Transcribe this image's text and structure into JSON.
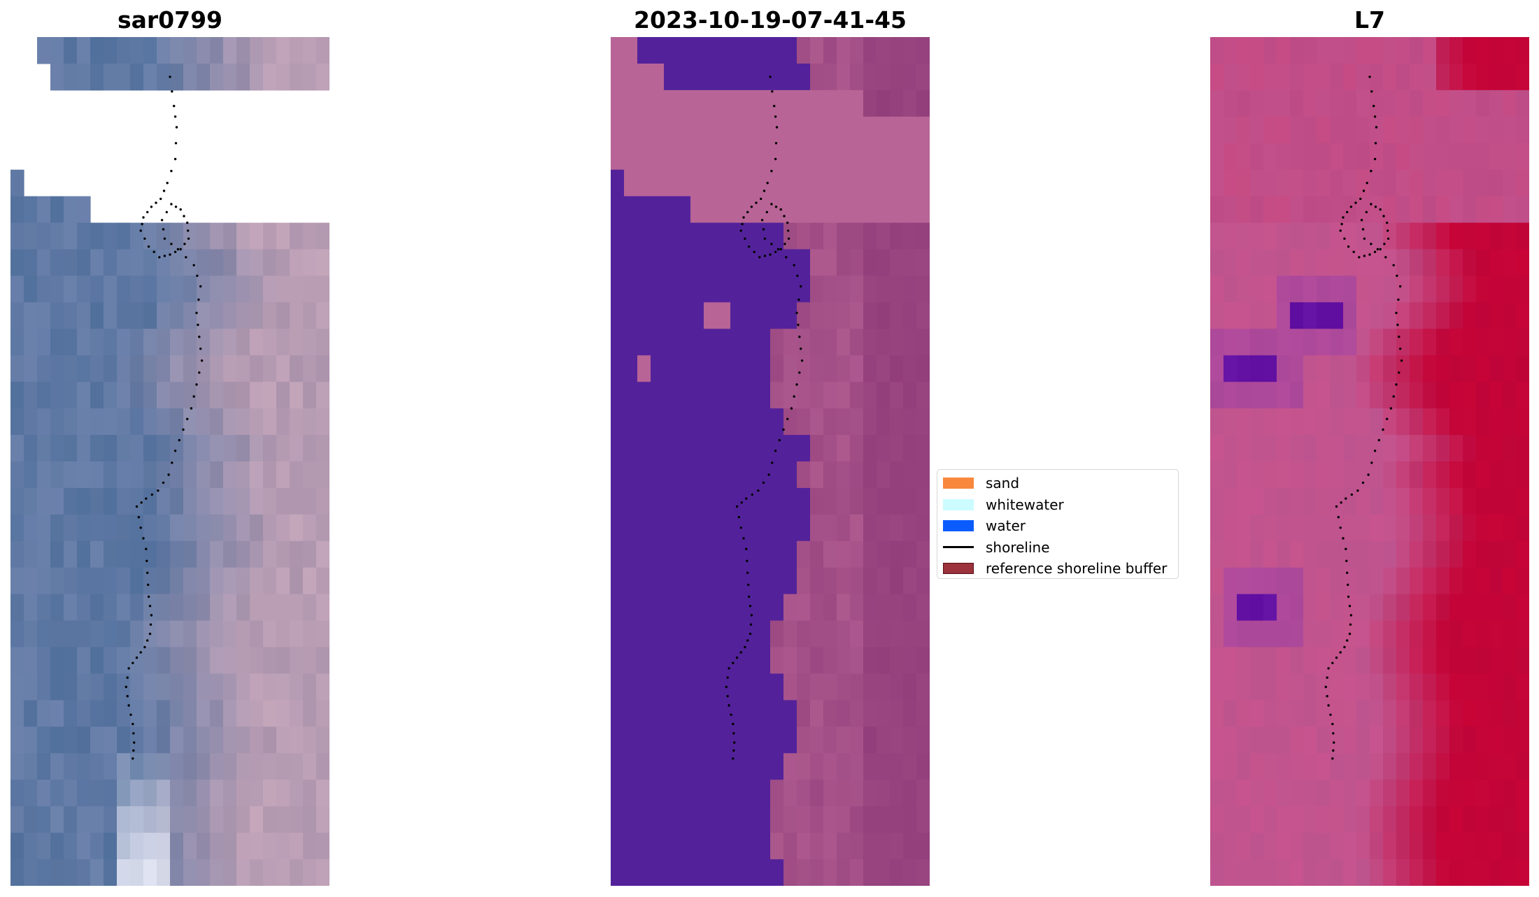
{
  "panels": [
    {
      "title": "sar0799",
      "kind": "rgb",
      "base": "#5f79a4",
      "warm": "#c7a3b6",
      "nodata": "#ffffff",
      "bright": "#eef0fb"
    },
    {
      "title": "2023-10-19-07-41-45",
      "kind": "classified",
      "water": "#53229a",
      "land": "#b86496",
      "buffer": "#8d3a78"
    },
    {
      "title": "L7",
      "kind": "index",
      "low": "#c2548e",
      "high": "#c30033",
      "dark": "#4a00a8"
    }
  ],
  "legend": {
    "items": [
      {
        "label": "sand",
        "color": "#f9883d",
        "style": "patch"
      },
      {
        "label": "whitewater",
        "color": "#ccfcff",
        "style": "patch"
      },
      {
        "label": "water",
        "color": "#0b5cff",
        "style": "patch"
      },
      {
        "label": "shoreline",
        "color": "#000000",
        "style": "line"
      },
      {
        "label": "reference shoreline buffer",
        "color": "#9c323c",
        "style": "buffer"
      }
    ]
  },
  "shoreline": {
    "color": "#000000",
    "points": [
      [
        12.0,
        1.5
      ],
      [
        12.3,
        2.6
      ],
      [
        12.5,
        3.4
      ],
      [
        12.4,
        4.6
      ],
      [
        11.8,
        5.5
      ],
      [
        11.3,
        6.1
      ],
      [
        10.6,
        6.4
      ],
      [
        10.0,
        6.8
      ],
      [
        9.8,
        7.3
      ],
      [
        10.4,
        7.9
      ],
      [
        11.2,
        8.3
      ],
      [
        12.0,
        8.2
      ],
      [
        12.8,
        8.0
      ],
      [
        13.4,
        7.6
      ],
      [
        13.3,
        7.0
      ],
      [
        12.8,
        6.5
      ],
      [
        12.1,
        6.3
      ],
      [
        11.4,
        6.9
      ],
      [
        11.6,
        7.6
      ],
      [
        12.6,
        8.0
      ],
      [
        13.8,
        8.6
      ],
      [
        14.3,
        9.4
      ],
      [
        14.0,
        10.4
      ],
      [
        14.2,
        11.3
      ],
      [
        14.4,
        12.2
      ],
      [
        14.0,
        13.1
      ],
      [
        13.6,
        14.0
      ],
      [
        13.0,
        14.8
      ],
      [
        12.4,
        15.6
      ],
      [
        11.9,
        16.5
      ],
      [
        11.1,
        17.1
      ],
      [
        10.2,
        17.4
      ],
      [
        9.5,
        17.7
      ],
      [
        9.8,
        18.5
      ],
      [
        10.2,
        19.3
      ],
      [
        10.3,
        20.2
      ],
      [
        10.4,
        21.1
      ],
      [
        10.6,
        21.8
      ],
      [
        10.5,
        22.5
      ],
      [
        10.1,
        23.0
      ],
      [
        9.5,
        23.4
      ],
      [
        8.9,
        23.8
      ],
      [
        8.7,
        24.5
      ],
      [
        8.9,
        25.2
      ],
      [
        9.2,
        25.9
      ],
      [
        9.3,
        26.6
      ],
      [
        9.2,
        27.2
      ]
    ]
  }
}
